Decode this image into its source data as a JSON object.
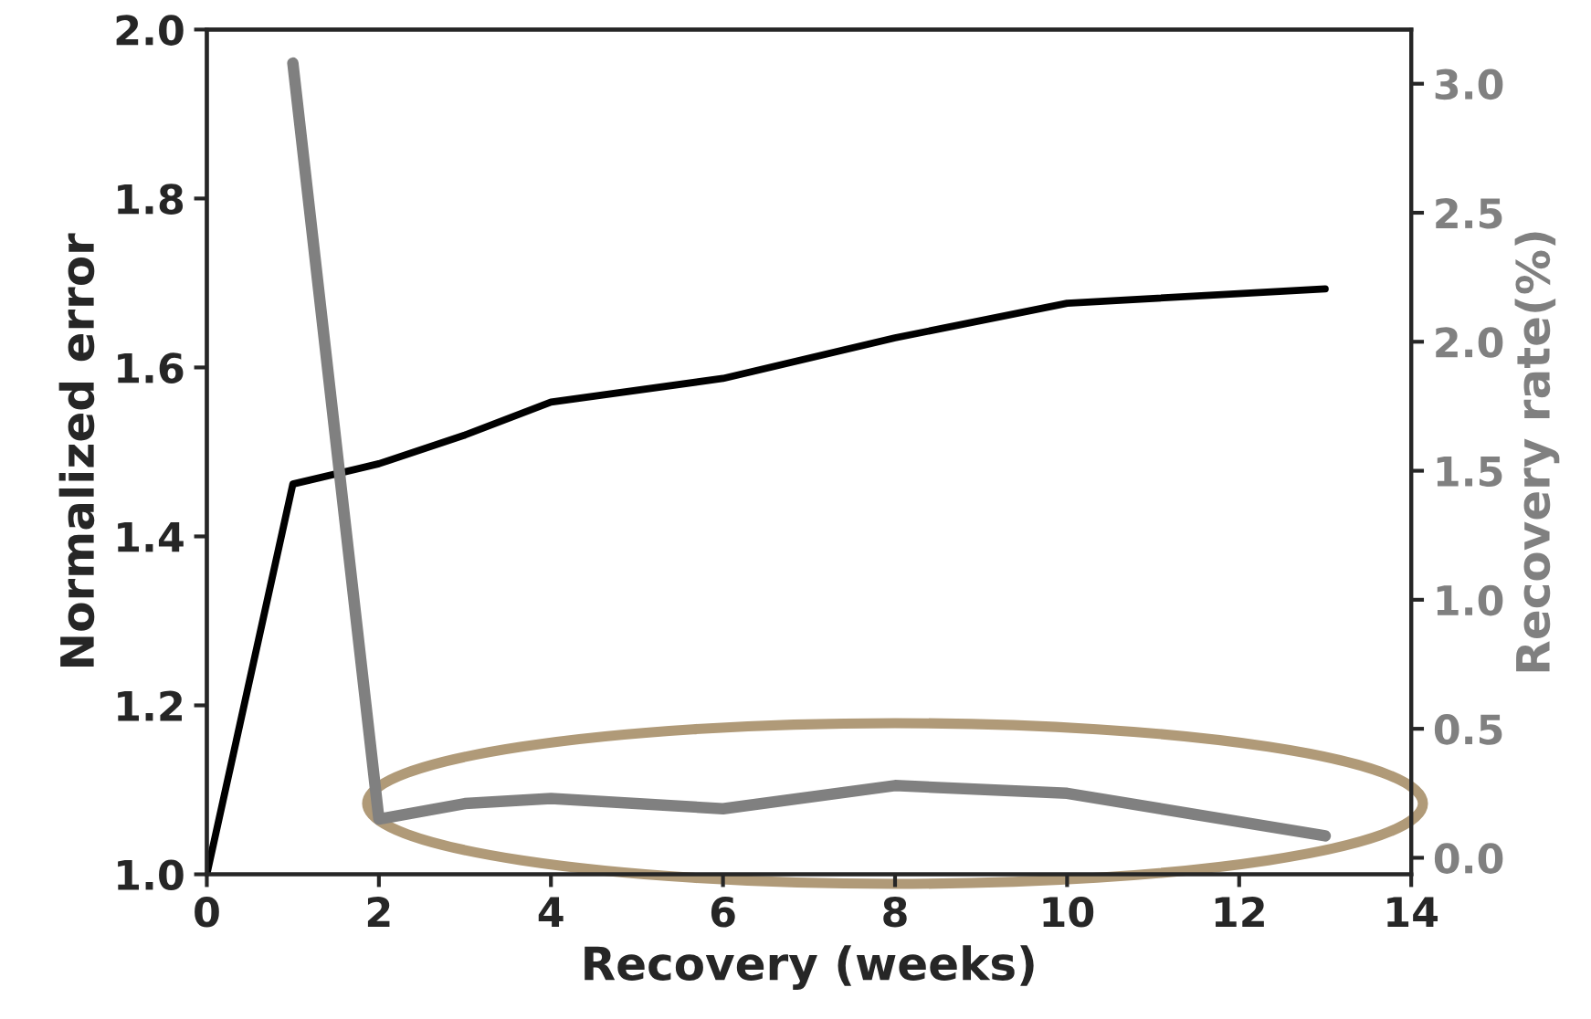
{
  "chart_data": {
    "type": "line",
    "xlabel": "Recovery (weeks)",
    "ylabel": "Normalized error",
    "y2label": "Recovery rate(%)",
    "xlim": [
      0,
      14
    ],
    "xticks": [
      0,
      2,
      4,
      6,
      8,
      10,
      12,
      14
    ],
    "ylim": [
      1.0,
      2.0
    ],
    "yticks": [
      {
        "value": 1,
        "label": "1.0"
      },
      1.2,
      1.4,
      1.6,
      1.8,
      {
        "value": 2,
        "label": "2.0"
      }
    ],
    "y2lim": [
      -0.064,
      3.21
    ],
    "y2ticks": [
      {
        "value": 0,
        "label": "0.0"
      },
      0.5,
      {
        "value": 1,
        "label": "1.0"
      },
      1.5,
      {
        "value": 2,
        "label": "2.0"
      },
      2.5,
      {
        "value": 3,
        "label": "3.0"
      }
    ],
    "grid": false,
    "legend": false,
    "marker": "none",
    "line_style": "solid",
    "series": [
      {
        "color": "#000000",
        "x": [
          0,
          1,
          2,
          3,
          4,
          6,
          8,
          10,
          13
        ],
        "values": [
          1.0,
          1.462,
          1.486,
          1.52,
          1.559,
          1.587,
          1.635,
          1.676,
          1.693
        ]
      },
      {
        "color": "#808080",
        "axis": "y2",
        "x": [
          1,
          2,
          3,
          4,
          6,
          8,
          10,
          13
        ],
        "values": [
          3.08,
          0.15,
          0.21,
          0.23,
          0.19,
          0.28,
          0.25,
          0.085
        ]
      }
    ]
  }
}
